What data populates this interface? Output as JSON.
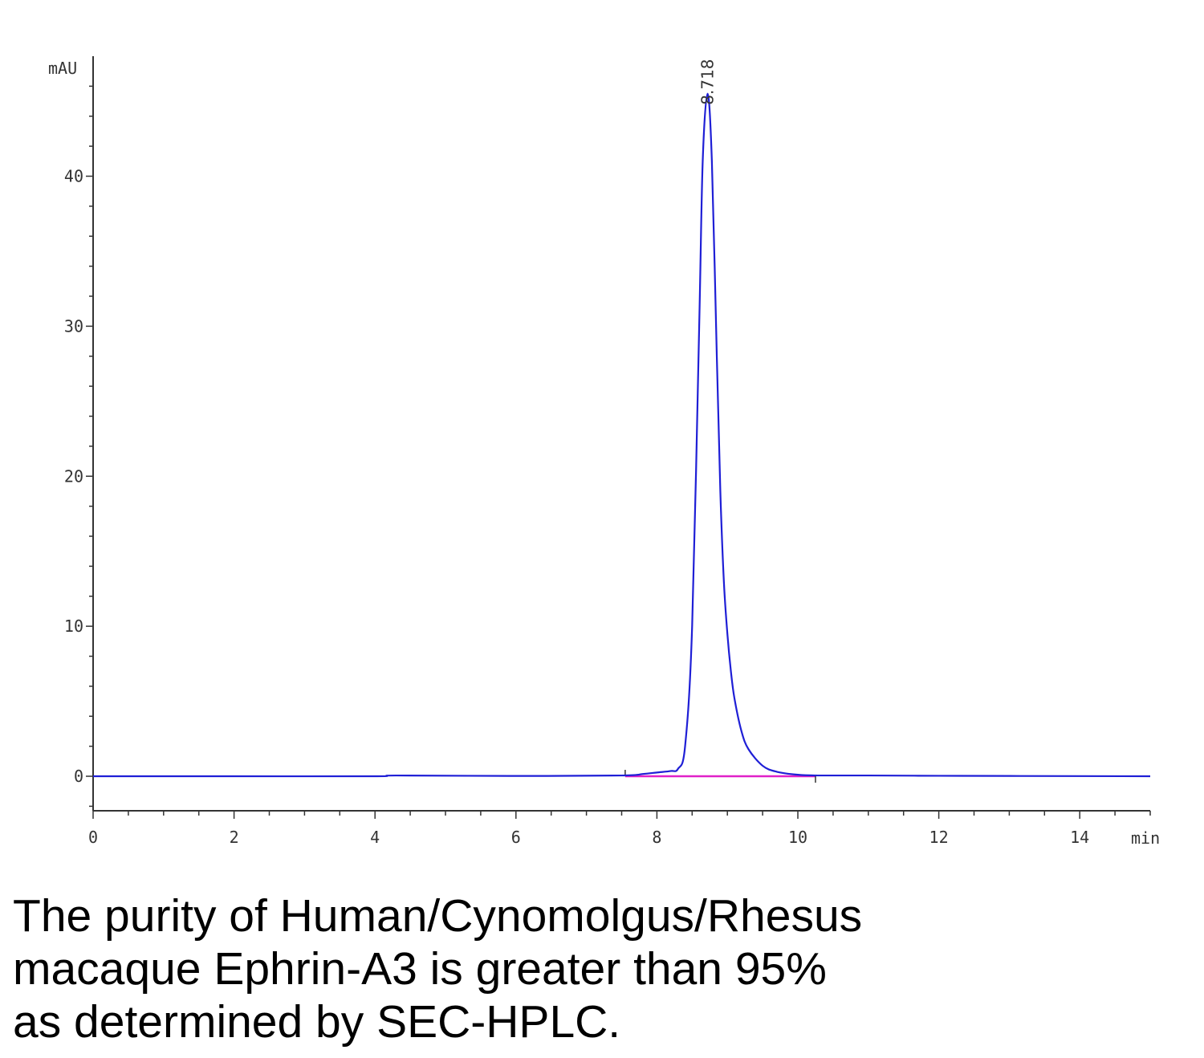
{
  "chart_data": {
    "type": "line",
    "y_unit_label": "mAU",
    "x_unit_label": "min",
    "xlim": [
      0,
      15
    ],
    "ylim": [
      -2.3,
      48
    ],
    "x_ticks": [
      0,
      2,
      4,
      6,
      8,
      10,
      12,
      14
    ],
    "y_ticks": [
      0,
      10,
      20,
      30,
      40
    ],
    "grid": false,
    "peak": {
      "retention_time": 8.718,
      "label": "8.718",
      "height": 45.5
    },
    "series": [
      {
        "color": "#1f1fd6",
        "x": [
          0,
          2,
          4,
          4.3,
          6,
          7.5,
          7.8,
          8.0,
          8.2,
          8.3,
          8.4,
          8.5,
          8.6,
          8.65,
          8.718,
          8.78,
          8.85,
          8.9,
          8.95,
          9.0,
          9.05,
          9.1,
          9.2,
          9.3,
          9.5,
          9.7,
          10.0,
          10.3,
          11,
          12,
          13,
          15
        ],
        "y": [
          0,
          0,
          0,
          0.05,
          0.02,
          0.05,
          0.15,
          0.25,
          0.35,
          0.5,
          2.0,
          10.0,
          30.0,
          41.0,
          45.5,
          41.0,
          28.0,
          19.0,
          13.0,
          9.5,
          7.0,
          5.2,
          3.0,
          1.8,
          0.7,
          0.3,
          0.1,
          0.05,
          0.05,
          0.03,
          0.02,
          0
        ]
      }
    ],
    "baseline": {
      "color": "#e020c8",
      "x": [
        7.55,
        10.25
      ],
      "y": [
        0,
        0
      ]
    }
  },
  "caption": {
    "lines": [
      "The purity of Human/Cynomolgus/Rhesus",
      "macaque Ephrin-A3 is greater than 95%",
      "as determined by SEC-HPLC."
    ]
  }
}
